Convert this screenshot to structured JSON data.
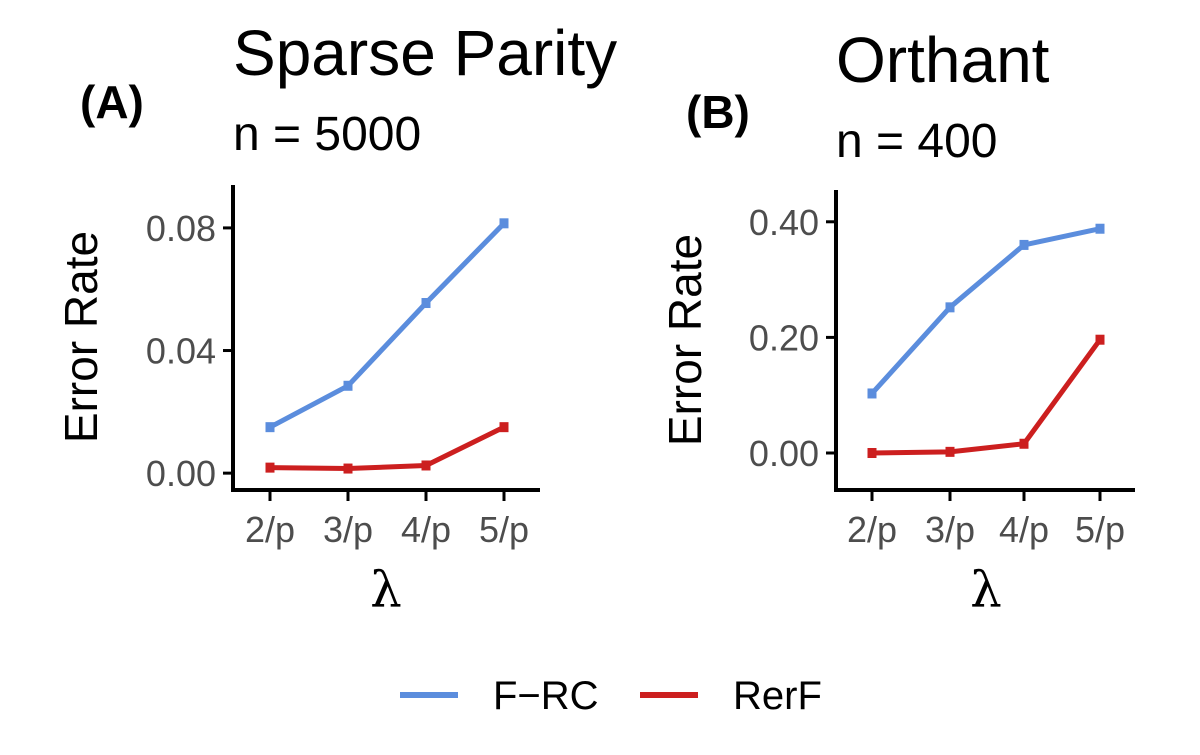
{
  "colors": {
    "F-RC": "#5b8ddd",
    "RerF": "#cc1f1f",
    "axis": "#000000",
    "tick_text": "#4d4d4d"
  },
  "chart_data": [
    {
      "type": "line",
      "tag": "(A)",
      "title": "Sparse Parity",
      "subtitle": "n = 5000",
      "xlabel": "λ",
      "ylabel": "Error Rate",
      "categories": [
        "2/p",
        "3/p",
        "4/p",
        "5/p"
      ],
      "ylim": [
        -0.0055,
        0.094
      ],
      "yticks": [
        0.0,
        0.04,
        0.08
      ],
      "ytick_labels": [
        "0.00",
        "0.04",
        "0.08"
      ],
      "series": [
        {
          "name": "F-RC",
          "values": [
            0.015,
            0.0285,
            0.0555,
            0.0815
          ]
        },
        {
          "name": "RerF",
          "values": [
            0.0018,
            0.0015,
            0.0025,
            0.015
          ]
        }
      ],
      "grid": false
    },
    {
      "type": "line",
      "tag": "(B)",
      "title": "Orthant",
      "subtitle": "n = 400",
      "xlabel": "λ",
      "ylabel": "Error Rate",
      "categories": [
        "2/p",
        "3/p",
        "4/p",
        "5/p"
      ],
      "ylim": [
        -0.064,
        0.455
      ],
      "yticks": [
        0.0,
        0.2,
        0.4
      ],
      "ytick_labels": [
        "0.00",
        "0.20",
        "0.40"
      ],
      "series": [
        {
          "name": "F-RC",
          "values": [
            0.103,
            0.252,
            0.36,
            0.388
          ]
        },
        {
          "name": "RerF",
          "values": [
            0.0,
            0.002,
            0.016,
            0.196
          ]
        }
      ],
      "grid": false
    }
  ],
  "legend": {
    "position": "bottom",
    "items": [
      {
        "label": "F−RC",
        "series": "F-RC"
      },
      {
        "label": "RerF",
        "series": "RerF"
      }
    ]
  }
}
